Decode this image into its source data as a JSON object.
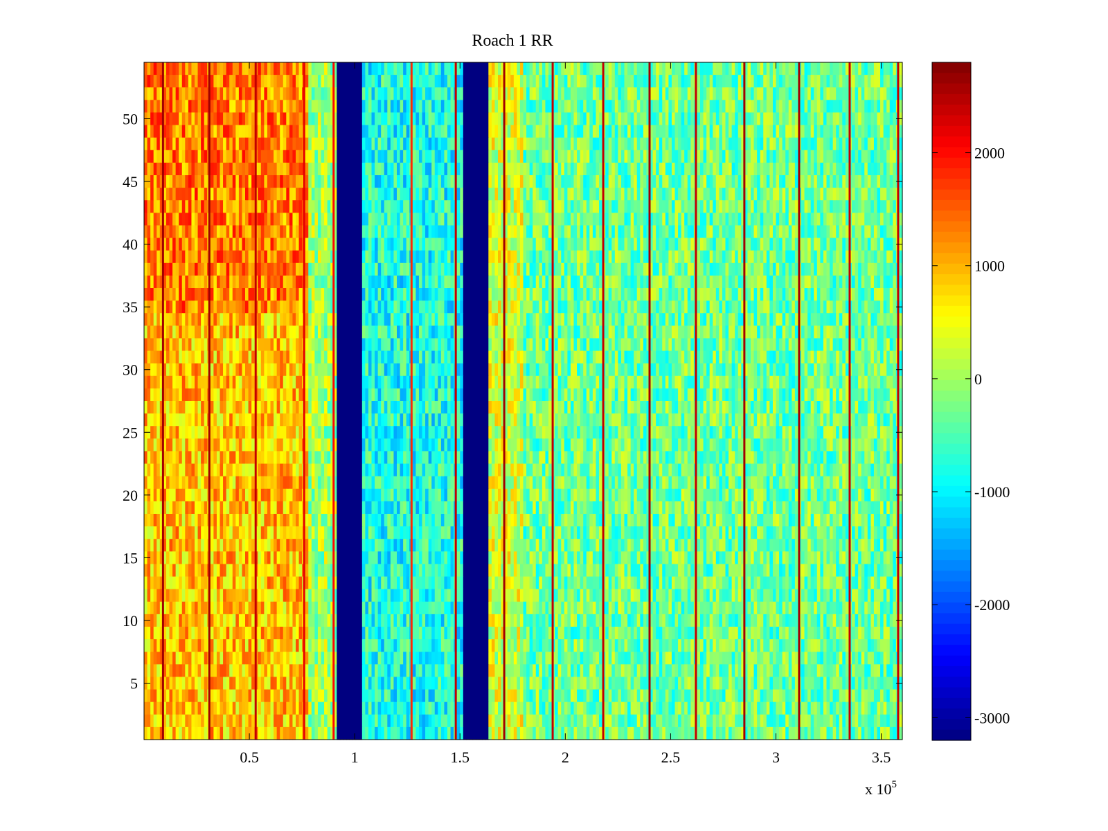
{
  "chart_data": {
    "type": "heatmap",
    "title": "Roach 1 RR",
    "xlabel": "",
    "ylabel": "",
    "x_multiplier_label": {
      "base": "x 10",
      "exponent": "5"
    },
    "xlim": [
      0,
      3.6
    ],
    "ylim": [
      0.5,
      54.5
    ],
    "x_ticks": [
      0.5,
      1,
      1.5,
      2,
      2.5,
      3,
      3.5
    ],
    "x_tick_labels": [
      "0.5",
      "1",
      "1.5",
      "2",
      "2.5",
      "3",
      "3.5"
    ],
    "y_ticks": [
      5,
      10,
      15,
      20,
      25,
      30,
      35,
      40,
      45,
      50
    ],
    "y_tick_labels": [
      "5",
      "10",
      "15",
      "20",
      "25",
      "30",
      "35",
      "40",
      "45",
      "50"
    ],
    "colormap": "jet",
    "clim": [
      -3200,
      2800
    ],
    "colorbar_ticks": [
      2000,
      1000,
      0,
      -1000,
      -2000,
      -3000
    ],
    "colorbar_tick_labels": [
      "2000",
      "1000",
      "0",
      "-1000",
      "-2000",
      "-3000"
    ],
    "rows": 54,
    "regions": [
      {
        "x": [
          0.0,
          0.78
        ],
        "mean": 900,
        "upper_rows_mean": 1300
      },
      {
        "x": [
          0.78,
          0.91
        ],
        "mean": 0
      },
      {
        "x": [
          0.91,
          1.03
        ],
        "mean": -3200
      },
      {
        "x": [
          1.03,
          1.52
        ],
        "mean": -800
      },
      {
        "x": [
          1.52,
          1.64
        ],
        "mean": -3200
      },
      {
        "x": [
          1.64,
          1.8
        ],
        "mean": 300
      },
      {
        "x": [
          1.8,
          3.6
        ],
        "mean": -300
      }
    ],
    "vertical_streaks": [
      {
        "x": 0.09,
        "value": 2600
      },
      {
        "x": 0.31,
        "value": 2600
      },
      {
        "x": 0.53,
        "value": 2400
      },
      {
        "x": 0.76,
        "value": 2200
      },
      {
        "x": 0.9,
        "value": 2000
      },
      {
        "x": 1.27,
        "value": 1800
      },
      {
        "x": 1.48,
        "value": 2400
      },
      {
        "x": 1.71,
        "value": 2600
      },
      {
        "x": 1.94,
        "value": 2400
      },
      {
        "x": 2.18,
        "value": 2400
      },
      {
        "x": 2.4,
        "value": 2600
      },
      {
        "x": 2.62,
        "value": 2400
      },
      {
        "x": 2.85,
        "value": 2600
      },
      {
        "x": 3.11,
        "value": 2600
      },
      {
        "x": 3.35,
        "value": 2400
      },
      {
        "x": 3.58,
        "value": 2400
      }
    ]
  }
}
